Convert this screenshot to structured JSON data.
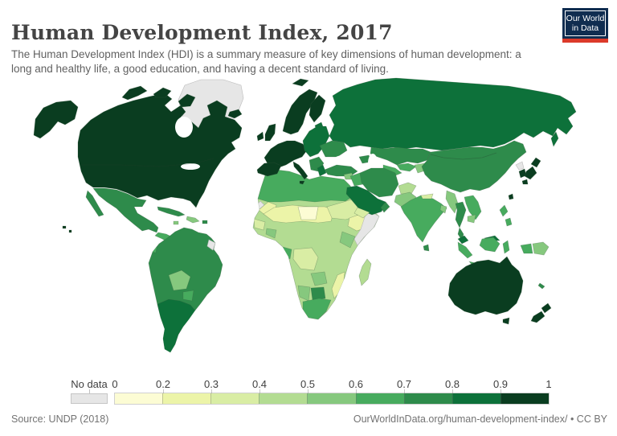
{
  "header": {
    "title": "Human Development Index, 2017",
    "subtitle": "The Human Development Index (HDI) is a summary measure of key dimensions of human development: a long and healthy life, a good education, and having a decent standard of living.",
    "logo": {
      "line1": "Our World",
      "line2": "in Data",
      "bg": "#102d50",
      "accent": "#dc3a2a"
    }
  },
  "legend": {
    "no_data_label": "No data",
    "no_data_color": "#e6e6e6",
    "ticks": [
      "0",
      "0.2",
      "0.3",
      "0.4",
      "0.5",
      "0.6",
      "0.7",
      "0.8",
      "0.9",
      "1"
    ],
    "bins": [
      {
        "id": "b0",
        "range": "0-0.2",
        "color": "#fcfcd4"
      },
      {
        "id": "b1",
        "range": "0.2-0.3",
        "color": "#ecf4a8"
      },
      {
        "id": "b2",
        "range": "0.3-0.4",
        "color": "#d9eda4"
      },
      {
        "id": "b3",
        "range": "0.4-0.5",
        "color": "#b3dc92"
      },
      {
        "id": "b4",
        "range": "0.5-0.6",
        "color": "#86c87e"
      },
      {
        "id": "b5",
        "range": "0.6-0.7",
        "color": "#47ab5e"
      },
      {
        "id": "b6",
        "range": "0.7-0.8",
        "color": "#2e8b4b"
      },
      {
        "id": "b7",
        "range": "0.8-0.9",
        "color": "#0d713a"
      },
      {
        "id": "b8",
        "range": "0.9-1",
        "color": "#0a3d20"
      }
    ]
  },
  "footer": {
    "source": "Source: UNDP (2018)",
    "link": "OurWorldInData.org/human-development-index/",
    "suffix": "• CC BY"
  },
  "chart_data": {
    "type": "choropleth-map",
    "title": "Human Development Index, 2017",
    "value_range": [
      0,
      1
    ],
    "legend_bins": [
      "0-0.2",
      "0.2-0.3",
      "0.3-0.4",
      "0.4-0.5",
      "0.5-0.6",
      "0.6-0.7",
      "0.7-0.8",
      "0.8-0.9",
      "0.9-1",
      "No data"
    ],
    "regions": [
      {
        "name": "Canada",
        "bin": "0.9-1"
      },
      {
        "name": "United States",
        "bin": "0.9-1"
      },
      {
        "name": "Greenland",
        "bin": "No data"
      },
      {
        "name": "Mexico",
        "bin": "0.7-0.8"
      },
      {
        "name": "Cuba",
        "bin": "0.7-0.8"
      },
      {
        "name": "Brazil",
        "bin": "0.7-0.8"
      },
      {
        "name": "Bolivia",
        "bin": "0.6-0.7"
      },
      {
        "name": "Argentina",
        "bin": "0.8-0.9"
      },
      {
        "name": "Chile",
        "bin": "0.8-0.9"
      },
      {
        "name": "French Guiana",
        "bin": "No data"
      },
      {
        "name": "Western Europe",
        "bin": "0.9-1"
      },
      {
        "name": "Eastern Europe",
        "bin": "0.8-0.9"
      },
      {
        "name": "Ukraine",
        "bin": "0.7-0.8"
      },
      {
        "name": "Russia",
        "bin": "0.8-0.9"
      },
      {
        "name": "Turkey",
        "bin": "0.7-0.8"
      },
      {
        "name": "North Africa",
        "bin": "0.6-0.7"
      },
      {
        "name": "Niger",
        "bin": "0-0.2"
      },
      {
        "name": "Sahel (Mali, Chad)",
        "bin": "0.2-0.3"
      },
      {
        "name": "DR Congo",
        "bin": "0.3-0.4"
      },
      {
        "name": "Ethiopia",
        "bin": "0.2-0.3"
      },
      {
        "name": "Somalia",
        "bin": "No data"
      },
      {
        "name": "Kenya",
        "bin": "0.5-0.6"
      },
      {
        "name": "Botswana",
        "bin": "0.7-0.8"
      },
      {
        "name": "South Africa",
        "bin": "0.6-0.7"
      },
      {
        "name": "Madagascar",
        "bin": "0.4-0.5"
      },
      {
        "name": "Saudi Arabia",
        "bin": "0.8-0.9"
      },
      {
        "name": "Yemen",
        "bin": "0.3-0.4"
      },
      {
        "name": "Iran",
        "bin": "0.7-0.8"
      },
      {
        "name": "Kazakhstan",
        "bin": "0.7-0.8"
      },
      {
        "name": "Afghanistan",
        "bin": "0.4-0.5"
      },
      {
        "name": "Pakistan",
        "bin": "0.5-0.6"
      },
      {
        "name": "India",
        "bin": "0.6-0.7"
      },
      {
        "name": "China",
        "bin": "0.7-0.8"
      },
      {
        "name": "Japan",
        "bin": "0.9-1"
      },
      {
        "name": "South Korea",
        "bin": "0.9-1"
      },
      {
        "name": "North Korea",
        "bin": "No data"
      },
      {
        "name": "Myanmar",
        "bin": "0.5-0.6"
      },
      {
        "name": "Thailand",
        "bin": "0.7-0.8"
      },
      {
        "name": "Vietnam",
        "bin": "0.6-0.7"
      },
      {
        "name": "Malaysia",
        "bin": "0.8-0.9"
      },
      {
        "name": "Indonesia",
        "bin": "0.6-0.7"
      },
      {
        "name": "Papua New Guinea",
        "bin": "0.5-0.6"
      },
      {
        "name": "Australia",
        "bin": "0.9-1"
      },
      {
        "name": "New Zealand",
        "bin": "0.9-1"
      }
    ]
  }
}
